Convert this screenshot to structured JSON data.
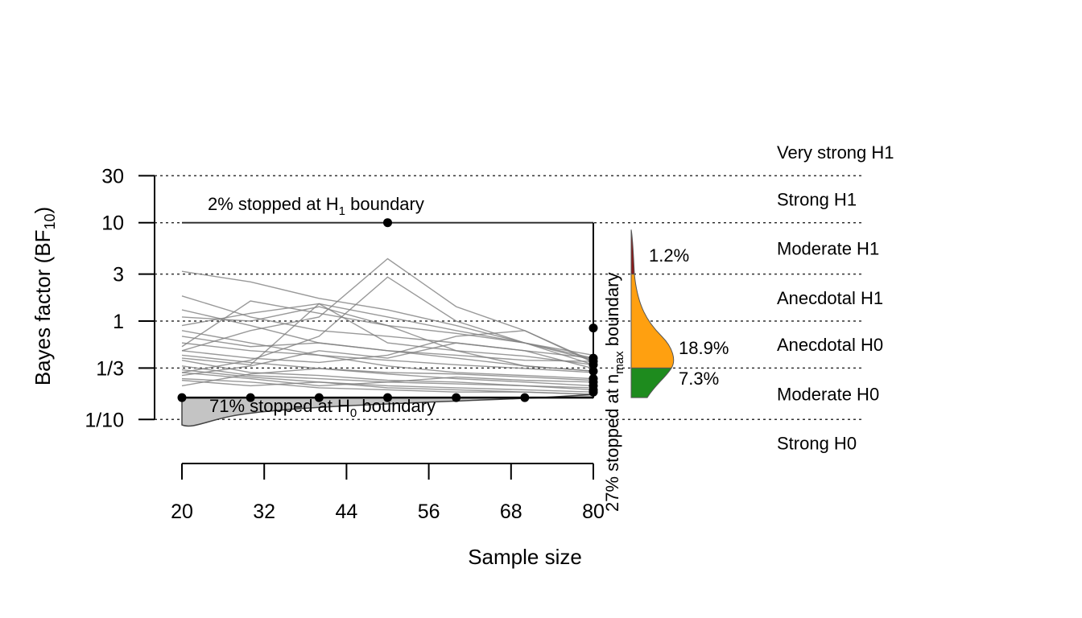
{
  "chart_data": {
    "type": "line",
    "xlabel": "Sample size",
    "ylabel": "Bayes factor (BF10)",
    "ylabel_parts": {
      "main": "Bayes factor (BF",
      "sub": "10",
      "end": ")"
    },
    "y_scale": "log",
    "x_ticks": [
      20,
      32,
      44,
      56,
      68,
      80
    ],
    "x_tick_labels": [
      "20",
      "32",
      "44",
      "56",
      "68",
      "80"
    ],
    "x_range": [
      20,
      80
    ],
    "y_ticks": [
      0.1,
      0.3333,
      1,
      3,
      10,
      30
    ],
    "y_tick_labels": [
      "1/10",
      "1/3",
      "1",
      "3",
      "10",
      "30"
    ],
    "y_range": [
      0.0667,
      30
    ],
    "evidence_thresholds": [
      0.1,
      0.3333,
      1,
      3,
      10,
      30
    ],
    "evidence_labels": [
      "Very strong H1",
      "Strong H1",
      "Moderate H1",
      "Anecdotal H1",
      "Anecdotal H0",
      "Moderate H0",
      "Strong H0"
    ],
    "boundaries": {
      "upper": 10,
      "lower": 0.1667,
      "n_min": 20,
      "n_max": 80
    },
    "annotations": {
      "upper": {
        "pre": "2% stopped at H",
        "sub": "1",
        "post": " boundary"
      },
      "lower": {
        "pre": "71% stopped at H",
        "sub": "0",
        "post": " boundary"
      },
      "nmax": {
        "pre": "27% stopped at n",
        "sub": "max",
        "post": " boundary"
      }
    },
    "stopped_upper": [
      {
        "n": 50,
        "bf": 10
      }
    ],
    "stopped_lower": [
      {
        "n": 20,
        "bf": 0.1667
      },
      {
        "n": 30,
        "bf": 0.1667
      },
      {
        "n": 40,
        "bf": 0.1667
      },
      {
        "n": 50,
        "bf": 0.1667
      },
      {
        "n": 60,
        "bf": 0.1667
      },
      {
        "n": 70,
        "bf": 0.1667
      }
    ],
    "stopped_nmax": [
      0.85,
      0.42,
      0.39,
      0.36,
      0.31,
      0.26,
      0.24,
      0.22,
      0.2,
      0.19
    ],
    "final_density": {
      "segments": [
        {
          "name": "H1 moderate",
          "color": "#8b1a1a",
          "bf_range": [
            3,
            8.5
          ]
        },
        {
          "name": "Anecdotal",
          "color": "#ffa010",
          "bf_range": [
            0.3333,
            3
          ]
        },
        {
          "name": "Moderate H0",
          "color": "#1e8b1e",
          "bf_range": [
            0.1667,
            0.3333
          ]
        }
      ],
      "percent_labels": [
        "1.2%",
        "18.9%",
        "7.3%"
      ]
    },
    "grid": false,
    "trajectories_color": "#808080",
    "trajectories": [
      [
        0.35,
        0.28,
        0.26,
        0.24,
        0.23,
        0.22,
        0.21
      ],
      [
        0.45,
        0.38,
        0.33,
        0.3,
        0.29,
        0.27,
        0.25
      ],
      [
        0.6,
        0.5,
        0.45,
        0.4,
        0.36,
        0.33,
        0.3
      ],
      [
        3.2,
        2.5,
        1.7,
        1.3,
        0.9,
        0.6,
        0.4
      ],
      [
        1.8,
        1.1,
        0.8,
        0.7,
        0.6,
        0.5,
        0.42
      ],
      [
        0.9,
        1.2,
        1.5,
        1.1,
        0.8,
        0.6,
        0.45
      ],
      [
        0.5,
        0.8,
        1.1,
        4.3,
        1.4,
        0.8,
        0.38
      ],
      [
        0.3,
        0.4,
        0.7,
        2.8,
        1.0,
        0.6,
        0.36
      ],
      [
        0.28,
        0.35,
        0.5,
        0.42,
        0.6,
        0.5,
        0.33
      ],
      [
        0.4,
        0.3,
        0.28,
        0.25,
        0.24,
        0.22,
        0.2
      ],
      [
        0.25,
        0.22,
        0.24,
        0.22,
        0.21,
        0.2,
        0.19
      ],
      [
        1.3,
        0.9,
        0.6,
        0.5,
        0.42,
        0.35,
        0.31
      ],
      [
        0.7,
        0.55,
        0.6,
        0.5,
        0.45,
        0.4,
        0.39
      ],
      [
        0.55,
        1.6,
        1.2,
        0.9,
        0.75,
        0.6,
        0.42
      ],
      [
        0.32,
        0.27,
        0.24,
        0.21,
        0.2,
        0.19,
        0.18
      ],
      [
        0.42,
        0.36,
        1.5,
        0.6,
        0.5,
        0.44,
        0.36
      ],
      [
        0.22,
        0.29,
        0.33,
        0.29,
        0.26,
        0.24,
        0.22
      ],
      [
        0.3,
        0.26,
        0.22,
        0.24,
        0.27,
        0.25,
        0.24
      ],
      [
        0.8,
        0.6,
        0.45,
        0.35,
        0.3,
        0.28,
        0.26
      ],
      [
        0.5,
        0.42,
        0.38,
        0.45,
        0.7,
        0.8,
        0.39
      ],
      [
        0.26,
        0.24,
        0.21,
        0.2,
        0.19,
        0.19,
        0.18
      ],
      [
        1.1,
        1.0,
        1.4,
        0.9,
        0.5,
        0.35,
        0.31
      ]
    ]
  }
}
